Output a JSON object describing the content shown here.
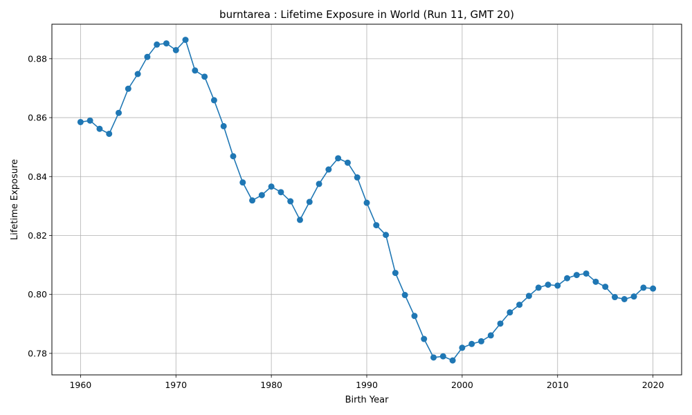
{
  "chart_data": {
    "type": "line",
    "title": "burntarea : Lifetime Exposure in World (Run 11, GMT 20)",
    "xlabel": "Birth Year",
    "ylabel": "Lifetime Exposure",
    "xlim": [
      1957,
      2023
    ],
    "ylim": [
      0.7727,
      0.8917
    ],
    "xticks": [
      1960,
      1970,
      1980,
      1990,
      2000,
      2010,
      2020
    ],
    "yticks": [
      0.78,
      0.8,
      0.82,
      0.84,
      0.86,
      0.88
    ],
    "ytick_labels": [
      "0.78",
      "0.80",
      "0.82",
      "0.84",
      "0.86",
      "0.88"
    ],
    "grid": true,
    "color": "#1f77b4",
    "series": [
      {
        "x": [
          1960,
          1961,
          1962,
          1963,
          1964,
          1965,
          1966,
          1967,
          1968,
          1969,
          1970,
          1971,
          1972,
          1973,
          1974,
          1975,
          1976,
          1977,
          1978,
          1979,
          1980,
          1981,
          1982,
          1983,
          1984,
          1985,
          1986,
          1987,
          1988,
          1989,
          1990,
          1991,
          1992,
          1993,
          1994,
          1995,
          1996,
          1997,
          1998,
          1999,
          2000,
          2001,
          2002,
          2003,
          2004,
          2005,
          2006,
          2007,
          2008,
          2009,
          2010,
          2011,
          2012,
          2013,
          2014,
          2015,
          2016,
          2017,
          2018,
          2019,
          2020
        ],
        "values": [
          0.8585,
          0.859,
          0.8562,
          0.8545,
          0.8616,
          0.8698,
          0.8748,
          0.8806,
          0.8848,
          0.8852,
          0.8829,
          0.8864,
          0.876,
          0.8739,
          0.8659,
          0.8571,
          0.8469,
          0.838,
          0.8319,
          0.8337,
          0.8366,
          0.8347,
          0.8316,
          0.8253,
          0.8314,
          0.8375,
          0.8424,
          0.8462,
          0.8447,
          0.8397,
          0.8311,
          0.8235,
          0.8202,
          0.8073,
          0.7998,
          0.7927,
          0.7849,
          0.7786,
          0.779,
          0.7776,
          0.7819,
          0.7832,
          0.7841,
          0.7861,
          0.7901,
          0.7939,
          0.7965,
          0.7995,
          0.8023,
          0.8033,
          0.803,
          0.8055,
          0.8066,
          0.8071,
          0.8043,
          0.8026,
          0.7991,
          0.7984,
          0.7993,
          0.8023,
          0.802
        ]
      }
    ]
  }
}
